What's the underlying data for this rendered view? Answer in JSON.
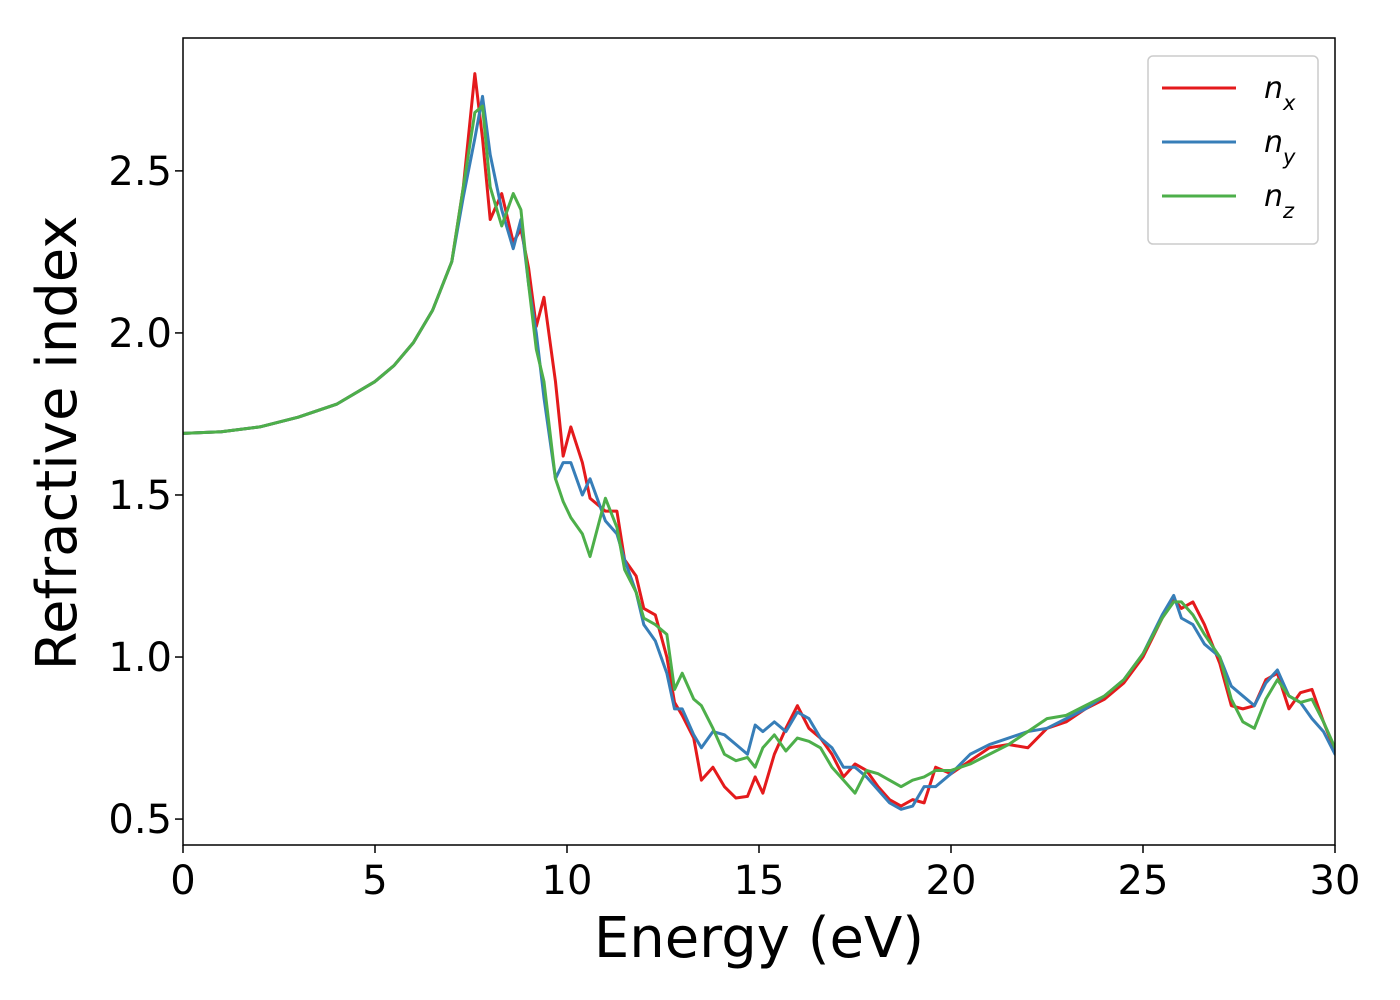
{
  "chart_data": {
    "type": "line",
    "xlabel": "Energy (eV)",
    "ylabel": "Refractive index",
    "xlim": [
      0,
      30
    ],
    "ylim": [
      0.42,
      2.91
    ],
    "xticks": [
      0,
      5,
      10,
      15,
      20,
      25,
      30
    ],
    "yticks": [
      0.5,
      {
        "value": 1,
        "label": "1.0"
      },
      1.5,
      {
        "value": 2,
        "label": "2.0"
      },
      2.5
    ],
    "grid": false,
    "legend": "upper right",
    "x": [
      0,
      1,
      2,
      3,
      4,
      5,
      5.5,
      6,
      6.5,
      7,
      7.3,
      7.6,
      7.8,
      8.0,
      8.3,
      8.6,
      8.8,
      9.0,
      9.2,
      9.4,
      9.7,
      9.9,
      10.1,
      10.4,
      10.6,
      11.0,
      11.3,
      11.5,
      11.8,
      12.0,
      12.3,
      12.6,
      12.8,
      13.0,
      13.3,
      13.5,
      13.8,
      14.1,
      14.4,
      14.7,
      14.9,
      15.1,
      15.4,
      15.7,
      16.0,
      16.3,
      16.6,
      16.9,
      17.2,
      17.5,
      17.8,
      18.1,
      18.4,
      18.7,
      19.0,
      19.3,
      19.6,
      20.0,
      20.5,
      21.0,
      21.5,
      22.0,
      22.5,
      23.0,
      23.5,
      24.0,
      24.5,
      25.0,
      25.5,
      25.8,
      26.0,
      26.3,
      26.6,
      27.0,
      27.3,
      27.6,
      27.9,
      28.2,
      28.5,
      28.8,
      29.1,
      29.4,
      29.7,
      30
    ],
    "series": [
      {
        "name": "nx",
        "color": "#e41a1c",
        "values": [
          1.69,
          1.695,
          1.71,
          1.74,
          1.78,
          1.85,
          1.9,
          1.97,
          2.07,
          2.22,
          2.45,
          2.8,
          2.6,
          2.35,
          2.43,
          2.28,
          2.32,
          2.2,
          2.02,
          2.11,
          1.85,
          1.62,
          1.71,
          1.6,
          1.49,
          1.45,
          1.45,
          1.3,
          1.25,
          1.15,
          1.13,
          1.0,
          0.86,
          0.82,
          0.75,
          0.62,
          0.66,
          0.6,
          0.565,
          0.57,
          0.63,
          0.58,
          0.7,
          0.78,
          0.85,
          0.78,
          0.75,
          0.7,
          0.63,
          0.67,
          0.65,
          0.6,
          0.56,
          0.54,
          0.56,
          0.55,
          0.66,
          0.64,
          0.68,
          0.72,
          0.73,
          0.72,
          0.78,
          0.8,
          0.84,
          0.87,
          0.92,
          1.0,
          1.12,
          1.18,
          1.15,
          1.17,
          1.1,
          0.98,
          0.85,
          0.84,
          0.85,
          0.93,
          0.95,
          0.84,
          0.89,
          0.9,
          0.8,
          0.71
        ]
      },
      {
        "name": "ny",
        "color": "#377eb8",
        "values": [
          1.69,
          1.695,
          1.71,
          1.74,
          1.78,
          1.85,
          1.9,
          1.97,
          2.07,
          2.22,
          2.42,
          2.6,
          2.73,
          2.55,
          2.38,
          2.26,
          2.35,
          2.15,
          2.0,
          1.8,
          1.55,
          1.6,
          1.6,
          1.5,
          1.55,
          1.42,
          1.38,
          1.3,
          1.2,
          1.1,
          1.05,
          0.95,
          0.84,
          0.84,
          0.76,
          0.72,
          0.77,
          0.76,
          0.73,
          0.7,
          0.79,
          0.77,
          0.8,
          0.77,
          0.83,
          0.81,
          0.75,
          0.72,
          0.66,
          0.66,
          0.63,
          0.59,
          0.55,
          0.53,
          0.54,
          0.6,
          0.6,
          0.64,
          0.7,
          0.73,
          0.75,
          0.77,
          0.78,
          0.81,
          0.84,
          0.88,
          0.93,
          1.01,
          1.13,
          1.19,
          1.12,
          1.1,
          1.04,
          1.0,
          0.91,
          0.88,
          0.85,
          0.92,
          0.96,
          0.88,
          0.86,
          0.81,
          0.77,
          0.7
        ]
      },
      {
        "name": "nz",
        "color": "#4daf4a",
        "values": [
          1.69,
          1.695,
          1.71,
          1.74,
          1.78,
          1.85,
          1.9,
          1.97,
          2.07,
          2.22,
          2.45,
          2.68,
          2.7,
          2.45,
          2.33,
          2.43,
          2.38,
          2.15,
          1.95,
          1.85,
          1.55,
          1.48,
          1.43,
          1.38,
          1.31,
          1.49,
          1.4,
          1.27,
          1.2,
          1.12,
          1.1,
          1.07,
          0.9,
          0.95,
          0.87,
          0.85,
          0.78,
          0.7,
          0.68,
          0.69,
          0.66,
          0.72,
          0.76,
          0.71,
          0.75,
          0.74,
          0.72,
          0.66,
          0.62,
          0.58,
          0.65,
          0.64,
          0.62,
          0.6,
          0.62,
          0.63,
          0.65,
          0.65,
          0.67,
          0.7,
          0.73,
          0.77,
          0.81,
          0.82,
          0.85,
          0.88,
          0.93,
          1.01,
          1.12,
          1.17,
          1.17,
          1.13,
          1.07,
          1.0,
          0.87,
          0.8,
          0.78,
          0.87,
          0.93,
          0.88,
          0.86,
          0.87,
          0.8,
          0.72
        ]
      }
    ]
  }
}
